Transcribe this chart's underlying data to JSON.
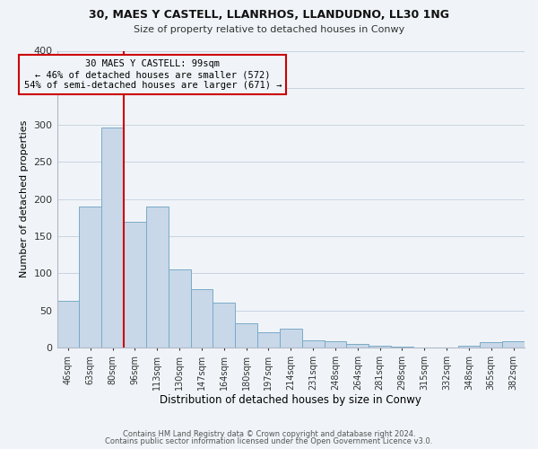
{
  "title1": "30, MAES Y CASTELL, LLANRHOS, LLANDUDNO, LL30 1NG",
  "title2": "Size of property relative to detached houses in Conwy",
  "xlabel": "Distribution of detached houses by size in Conwy",
  "ylabel": "Number of detached properties",
  "bin_labels": [
    "46sqm",
    "63sqm",
    "80sqm",
    "96sqm",
    "113sqm",
    "130sqm",
    "147sqm",
    "164sqm",
    "180sqm",
    "197sqm",
    "214sqm",
    "231sqm",
    "248sqm",
    "264sqm",
    "281sqm",
    "298sqm",
    "315sqm",
    "332sqm",
    "348sqm",
    "365sqm",
    "382sqm"
  ],
  "bar_heights": [
    63,
    190,
    296,
    170,
    190,
    105,
    79,
    60,
    33,
    21,
    25,
    10,
    8,
    5,
    2,
    1,
    0,
    0,
    2,
    7,
    9
  ],
  "bar_color": "#c8d8e8",
  "bar_edge_color": "#7aaac8",
  "vline_color": "#cc0000",
  "annotation_line1": "30 MAES Y CASTELL: 99sqm",
  "annotation_line2": "← 46% of detached houses are smaller (572)",
  "annotation_line3": "54% of semi-detached houses are larger (671) →",
  "annotation_box_edge": "#cc0000",
  "footer1": "Contains HM Land Registry data © Crown copyright and database right 2024.",
  "footer2": "Contains public sector information licensed under the Open Government Licence v3.0.",
  "ylim": [
    0,
    400
  ],
  "yticks": [
    0,
    50,
    100,
    150,
    200,
    250,
    300,
    350,
    400
  ],
  "bg_color": "#f0f4f8",
  "grid_color": "#c8d4e0"
}
